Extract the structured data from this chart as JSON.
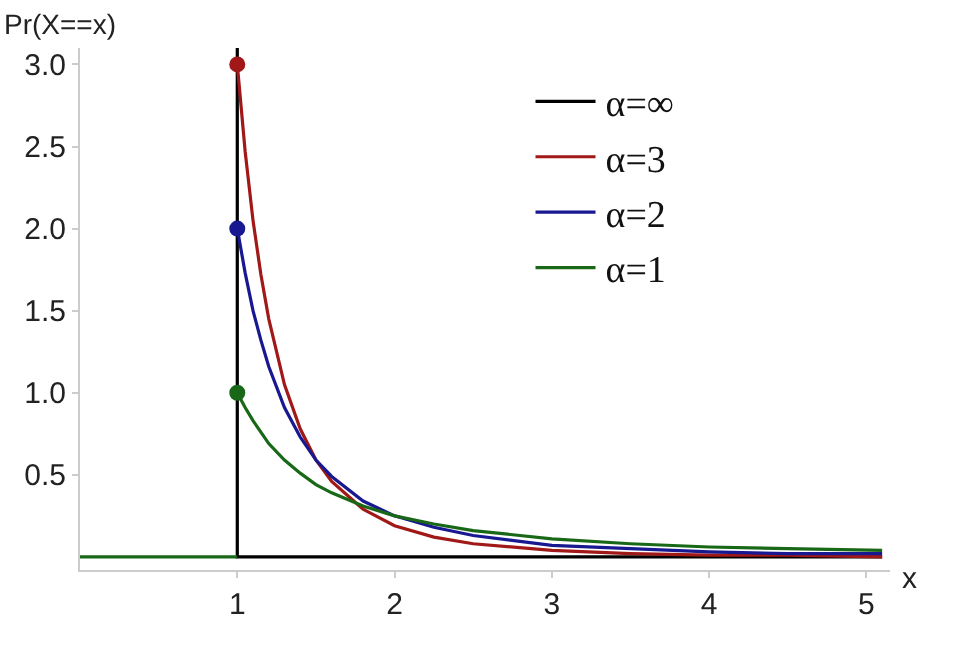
{
  "chart_data": {
    "type": "line",
    "xlabel": "x",
    "ylabel": "Pr(X==x)",
    "xlim": [
      0,
      5.15
    ],
    "ylim": [
      -0.08,
      3.1
    ],
    "xticks": [
      1,
      2,
      3,
      4,
      5
    ],
    "yticks": [
      {
        "value": 0.5,
        "label": "0.5"
      },
      {
        "value": 1,
        "label": "1.0"
      },
      {
        "value": 1.5,
        "label": "1.5"
      },
      {
        "value": 2,
        "label": "2.0"
      },
      {
        "value": 2.5,
        "label": "2.5"
      },
      {
        "value": 3,
        "label": "3.0"
      }
    ],
    "legend": "top right",
    "marker": "none",
    "line_style": "solid",
    "series": [
      {
        "name": "α=∞",
        "color": "#000000",
        "x": [
          1,
          1,
          5.1
        ],
        "values": [
          3.1,
          0,
          0
        ]
      },
      {
        "name": "α=3",
        "color": "#a01818",
        "x": [
          1,
          1.05,
          1.1,
          1.15,
          1.2,
          1.3,
          1.4,
          1.5,
          1.6,
          1.8,
          2,
          2.25,
          2.5,
          3,
          3.5,
          4,
          4.5,
          5.1
        ],
        "values": [
          3,
          2.47,
          2.05,
          1.72,
          1.45,
          1.05,
          0.78,
          0.59,
          0.46,
          0.29,
          0.19,
          0.12,
          0.08,
          0.04,
          0.02,
          0.01,
          0.01,
          0.0
        ]
      },
      {
        "name": "α=2",
        "color": "#181890",
        "x": [
          1,
          1.05,
          1.1,
          1.15,
          1.2,
          1.3,
          1.4,
          1.5,
          1.6,
          1.8,
          2,
          2.25,
          2.5,
          3,
          3.5,
          4,
          4.5,
          5.1
        ],
        "values": [
          2,
          1.73,
          1.5,
          1.32,
          1.16,
          0.91,
          0.73,
          0.59,
          0.49,
          0.34,
          0.25,
          0.18,
          0.13,
          0.07,
          0.05,
          0.03,
          0.02,
          0.02
        ]
      },
      {
        "name": "α=1",
        "color": "#186818",
        "x": [
          1,
          1.05,
          1.1,
          1.15,
          1.2,
          1.3,
          1.4,
          1.5,
          1.6,
          1.8,
          2,
          2.25,
          2.5,
          3,
          3.5,
          4,
          4.5,
          5.1
        ],
        "values": [
          1,
          0.91,
          0.83,
          0.76,
          0.69,
          0.59,
          0.51,
          0.44,
          0.39,
          0.31,
          0.25,
          0.2,
          0.16,
          0.11,
          0.08,
          0.06,
          0.05,
          0.04
        ]
      },
      {
        "color": "#186818",
        "x": [
          0,
          1
        ],
        "values": [
          0,
          0
        ]
      },
      {
        "type": "scatter",
        "marker": "circle",
        "color": "#a01818",
        "x": [
          1
        ],
        "values": [
          3
        ]
      },
      {
        "type": "scatter",
        "marker": "circle",
        "color": "#181890",
        "x": [
          1
        ],
        "values": [
          2
        ]
      },
      {
        "type": "scatter",
        "marker": "circle",
        "color": "#186818",
        "x": [
          1
        ],
        "values": [
          1
        ]
      }
    ]
  }
}
